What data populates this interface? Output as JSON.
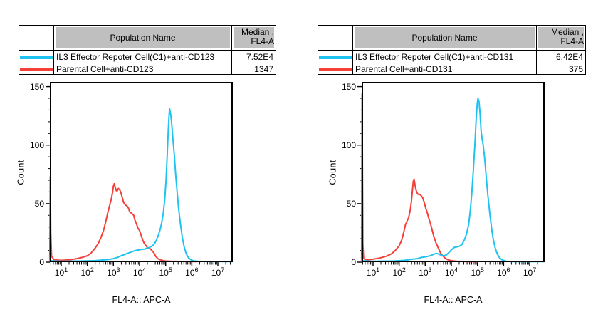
{
  "panels": [
    {
      "id": "anti-CD123",
      "legend": {
        "header": {
          "population": "Population Name",
          "median_line1": "Median ,",
          "median_line2": "FL4-A"
        },
        "rows": [
          {
            "color": "#1fc3f2",
            "name": "IL3 Effector Repoter Cell(C1)+anti-CD123",
            "median": "7.52E4"
          },
          {
            "color": "#f5403a",
            "name": "Parental Cell+anti-CD123",
            "median": "1347"
          }
        ]
      },
      "ylabel": "Count",
      "xlabel": "FL4-A:: APC-A"
    },
    {
      "id": "anti-CD131",
      "legend": {
        "header": {
          "population": "Population Name",
          "median_line1": "Median ,",
          "median_line2": "FL4-A"
        },
        "rows": [
          {
            "color": "#1fc3f2",
            "name": "IL3 Effector Repoter Cell(C1)+anti-CD131",
            "median": "6.42E4"
          },
          {
            "color": "#f5403a",
            "name": "Parental Cell+anti-CD131",
            "median": "375"
          }
        ]
      },
      "ylabel": "Count",
      "xlabel": "FL4-A:: APC-A"
    }
  ],
  "chart_data": [
    {
      "type": "line",
      "title": "anti-CD123 histogram",
      "xscale": "log10",
      "xlabel": "FL4-A:: APC-A",
      "ylabel": "Count",
      "xlim_log10": [
        0.564,
        7.572
      ],
      "ylim": [
        0,
        154
      ],
      "yticks": [
        0,
        50,
        100,
        150
      ],
      "y_minor_step": 10,
      "xtick_exponents": [
        1,
        2,
        3,
        4,
        5,
        6,
        7
      ],
      "grid": false,
      "legend_position": "table-above",
      "series": [
        {
          "name": "Parental Cell+anti-CD123",
          "color": "#f5403a",
          "median": 1347,
          "points": [
            [
              0.56,
              1
            ],
            [
              0.58,
              73
            ],
            [
              0.6,
              25
            ],
            [
              0.63,
              5
            ],
            [
              0.72,
              2
            ],
            [
              1.0,
              1.5
            ],
            [
              1.35,
              2
            ],
            [
              1.6,
              3
            ],
            [
              1.8,
              4
            ],
            [
              2.0,
              5.5
            ],
            [
              2.15,
              8
            ],
            [
              2.3,
              12
            ],
            [
              2.42,
              16
            ],
            [
              2.52,
              21
            ],
            [
              2.62,
              27
            ],
            [
              2.7,
              34
            ],
            [
              2.78,
              42
            ],
            [
              2.85,
              48
            ],
            [
              2.92,
              54
            ],
            [
              2.97,
              60
            ],
            [
              3.0,
              65
            ],
            [
              3.03,
              67
            ],
            [
              3.07,
              64
            ],
            [
              3.11,
              61
            ],
            [
              3.15,
              61
            ],
            [
              3.19,
              63
            ],
            [
              3.24,
              62
            ],
            [
              3.29,
              59
            ],
            [
              3.34,
              55
            ],
            [
              3.39,
              51
            ],
            [
              3.45,
              49
            ],
            [
              3.52,
              48
            ],
            [
              3.58,
              46
            ],
            [
              3.62,
              43
            ],
            [
              3.68,
              42
            ],
            [
              3.73,
              41
            ],
            [
              3.78,
              40
            ],
            [
              3.82,
              36
            ],
            [
              3.88,
              33
            ],
            [
              3.94,
              29
            ],
            [
              4.0,
              27
            ],
            [
              4.06,
              23
            ],
            [
              4.12,
              19
            ],
            [
              4.18,
              16
            ],
            [
              4.25,
              14
            ],
            [
              4.32,
              12
            ],
            [
              4.4,
              11.5
            ],
            [
              4.47,
              10
            ],
            [
              4.55,
              8
            ],
            [
              4.62,
              5
            ],
            [
              4.7,
              3
            ],
            [
              4.8,
              2
            ],
            [
              4.95,
              1
            ],
            [
              5.2,
              0.7
            ],
            [
              5.6,
              0.6
            ],
            [
              6.2,
              0.5
            ]
          ]
        },
        {
          "name": "IL3 Effector Repoter Cell(C1)+anti-CD123",
          "color": "#1fc3f2",
          "median": 75200,
          "points": [
            [
              0.56,
              0.8
            ],
            [
              0.575,
              4
            ],
            [
              0.6,
              1.2
            ],
            [
              1.0,
              0.8
            ],
            [
              1.8,
              1
            ],
            [
              2.3,
              1.3
            ],
            [
              2.6,
              1.8
            ],
            [
              2.8,
              2.2
            ],
            [
              3.0,
              3
            ],
            [
              3.15,
              4
            ],
            [
              3.3,
              5.5
            ],
            [
              3.4,
              6.3
            ],
            [
              3.48,
              7
            ],
            [
              3.56,
              7.6
            ],
            [
              3.66,
              8.5
            ],
            [
              3.76,
              9.3
            ],
            [
              3.86,
              10
            ],
            [
              3.96,
              10.4
            ],
            [
              4.05,
              10.8
            ],
            [
              4.12,
              11
            ],
            [
              4.2,
              11
            ],
            [
              4.28,
              12
            ],
            [
              4.35,
              12.3
            ],
            [
              4.42,
              13
            ],
            [
              4.5,
              14
            ],
            [
              4.58,
              16
            ],
            [
              4.65,
              19
            ],
            [
              4.72,
              23
            ],
            [
              4.79,
              28
            ],
            [
              4.85,
              34
            ],
            [
              4.91,
              42
            ],
            [
              4.97,
              55
            ],
            [
              5.02,
              72
            ],
            [
              5.06,
              92
            ],
            [
              5.1,
              112
            ],
            [
              5.13,
              125
            ],
            [
              5.15,
              131
            ],
            [
              5.19,
              127
            ],
            [
              5.23,
              119
            ],
            [
              5.28,
              105
            ],
            [
              5.33,
              92
            ],
            [
              5.38,
              76
            ],
            [
              5.44,
              60
            ],
            [
              5.5,
              45
            ],
            [
              5.57,
              32
            ],
            [
              5.64,
              21
            ],
            [
              5.71,
              13
            ],
            [
              5.79,
              7
            ],
            [
              5.88,
              3.5
            ],
            [
              5.98,
              1.8
            ],
            [
              6.1,
              1
            ],
            [
              6.3,
              0.6
            ],
            [
              7.55,
              0.5
            ]
          ]
        }
      ]
    },
    {
      "type": "line",
      "title": "anti-CD131 histogram",
      "xscale": "log10",
      "xlabel": "FL4-A:: APC-A",
      "ylabel": "Count",
      "xlim_log10": [
        0.564,
        7.572
      ],
      "ylim": [
        0,
        154
      ],
      "yticks": [
        0,
        50,
        100,
        150
      ],
      "y_minor_step": 10,
      "xtick_exponents": [
        1,
        2,
        3,
        4,
        5,
        6,
        7
      ],
      "grid": false,
      "legend_position": "table-above",
      "series": [
        {
          "name": "Parental Cell+anti-CD131",
          "color": "#f5403a",
          "median": 375,
          "points": [
            [
              0.56,
              1
            ],
            [
              0.58,
              144
            ],
            [
              0.61,
              15
            ],
            [
              0.64,
              3
            ],
            [
              0.75,
              2
            ],
            [
              1.0,
              2.5
            ],
            [
              1.25,
              3.5
            ],
            [
              1.5,
              5
            ],
            [
              1.7,
              7
            ],
            [
              1.85,
              10
            ],
            [
              2.0,
              14
            ],
            [
              2.1,
              19
            ],
            [
              2.18,
              26
            ],
            [
              2.24,
              32
            ],
            [
              2.3,
              35
            ],
            [
              2.36,
              38
            ],
            [
              2.42,
              44
            ],
            [
              2.47,
              52
            ],
            [
              2.51,
              62
            ],
            [
              2.54,
              69
            ],
            [
              2.57,
              71
            ],
            [
              2.6,
              67
            ],
            [
              2.63,
              63
            ],
            [
              2.67,
              60
            ],
            [
              2.72,
              58
            ],
            [
              2.78,
              58
            ],
            [
              2.84,
              57
            ],
            [
              2.9,
              55
            ],
            [
              2.96,
              51
            ],
            [
              3.02,
              46
            ],
            [
              3.08,
              42
            ],
            [
              3.14,
              37
            ],
            [
              3.2,
              33
            ],
            [
              3.27,
              27
            ],
            [
              3.34,
              21
            ],
            [
              3.42,
              16
            ],
            [
              3.5,
              12
            ],
            [
              3.58,
              8
            ],
            [
              3.67,
              5.5
            ],
            [
              3.76,
              3.5
            ],
            [
              3.87,
              2
            ],
            [
              4.0,
              1.2
            ],
            [
              4.2,
              0.8
            ],
            [
              4.6,
              0.5
            ],
            [
              5.0,
              0.5
            ]
          ]
        },
        {
          "name": "IL3 Effector Repoter Cell(C1)+anti-CD131",
          "color": "#1fc3f2",
          "median": 64200,
          "points": [
            [
              0.56,
              0.8
            ],
            [
              0.575,
              3
            ],
            [
              0.6,
              1.2
            ],
            [
              1.0,
              0.8
            ],
            [
              1.8,
              1
            ],
            [
              2.2,
              1.5
            ],
            [
              2.5,
              2.5
            ],
            [
              2.7,
              3
            ],
            [
              2.85,
              4
            ],
            [
              3.0,
              4.5
            ],
            [
              3.1,
              5
            ],
            [
              3.2,
              5.5
            ],
            [
              3.3,
              6.5
            ],
            [
              3.42,
              7.5
            ],
            [
              3.5,
              7
            ],
            [
              3.6,
              6
            ],
            [
              3.7,
              5.5
            ],
            [
              3.8,
              6
            ],
            [
              3.9,
              8
            ],
            [
              4.0,
              10.5
            ],
            [
              4.1,
              12.5
            ],
            [
              4.2,
              13
            ],
            [
              4.3,
              13.5
            ],
            [
              4.4,
              15
            ],
            [
              4.5,
              19
            ],
            [
              4.58,
              24
            ],
            [
              4.66,
              32
            ],
            [
              4.72,
              43
            ],
            [
              4.78,
              58
            ],
            [
              4.84,
              78
            ],
            [
              4.9,
              100
            ],
            [
              4.95,
              122
            ],
            [
              4.99,
              135
            ],
            [
              5.02,
              140
            ],
            [
              5.06,
              137
            ],
            [
              5.1,
              127
            ],
            [
              5.14,
              112
            ],
            [
              5.18,
              105
            ],
            [
              5.22,
              100
            ],
            [
              5.28,
              88
            ],
            [
              5.34,
              72
            ],
            [
              5.4,
              57
            ],
            [
              5.47,
              42
            ],
            [
              5.54,
              29
            ],
            [
              5.6,
              20
            ],
            [
              5.68,
              12
            ],
            [
              5.76,
              7
            ],
            [
              5.85,
              3.5
            ],
            [
              5.95,
              1.8
            ],
            [
              6.1,
              0.8
            ],
            [
              6.35,
              0.5
            ],
            [
              7.55,
              0.5
            ]
          ]
        }
      ]
    }
  ]
}
